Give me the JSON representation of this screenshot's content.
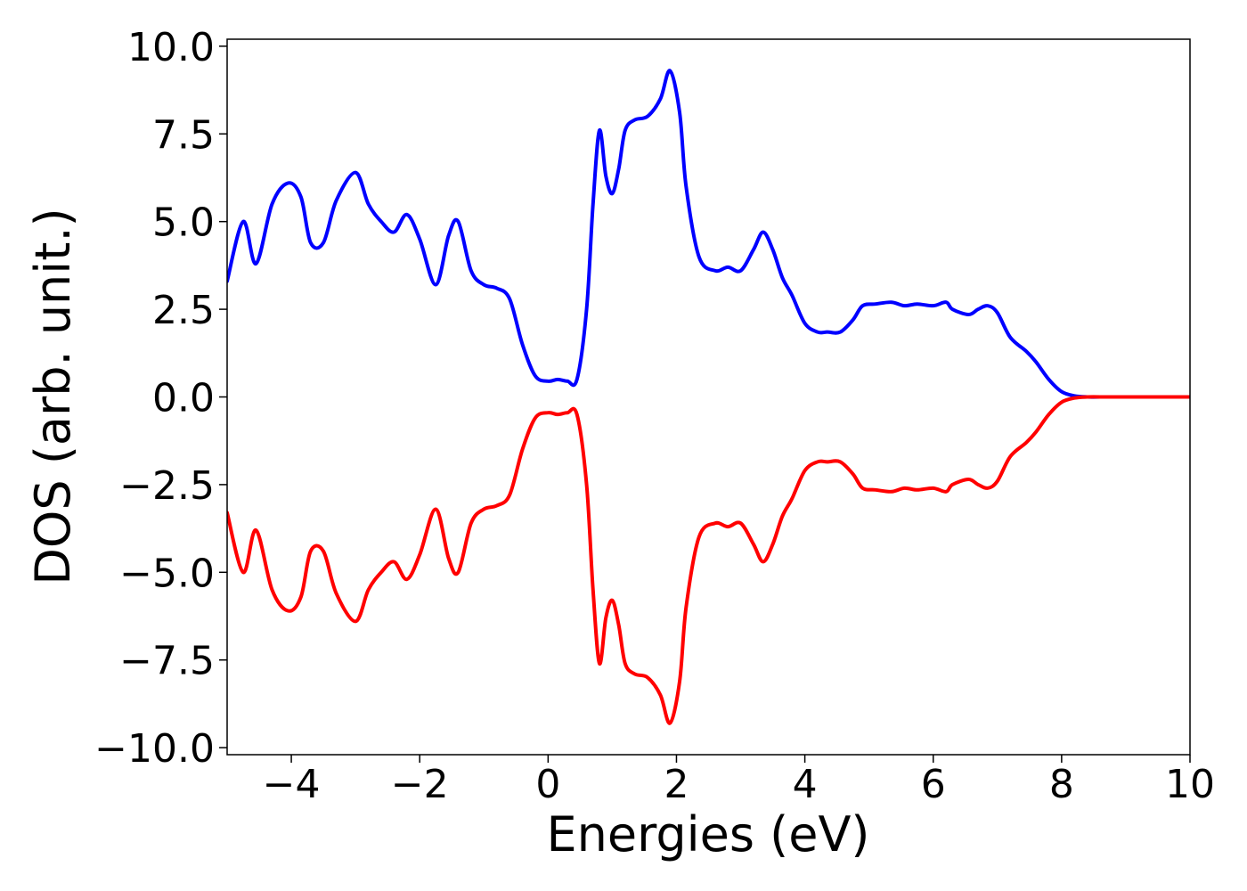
{
  "chart_data": {
    "type": "line",
    "title": "",
    "xlabel": "Energies (eV)",
    "ylabel": "DOS (arb. unit.)",
    "xlim": [
      -5,
      10
    ],
    "ylim": [
      -10.2,
      10.2
    ],
    "grid": false,
    "legend": "none",
    "x_ticks": [
      -4,
      -2,
      0,
      2,
      4,
      6,
      8,
      10
    ],
    "x_tick_labels": [
      "−4",
      "−2",
      "0",
      "2",
      "4",
      "6",
      "8",
      "10"
    ],
    "y_ticks": [
      10,
      7.5,
      5,
      2.5,
      0,
      -2.5,
      -5,
      -7.5,
      -10
    ],
    "y_tick_labels": [
      "10.0",
      "7.5",
      "5.0",
      "2.5",
      "0.0",
      "−2.5",
      "−5.0",
      "−7.5",
      "−10.0"
    ],
    "series": [
      {
        "color": "#0000ff",
        "x": [
          -5.0,
          -4.75,
          -4.55,
          -4.3,
          -4.05,
          -3.85,
          -3.7,
          -3.5,
          -3.3,
          -3.0,
          -2.8,
          -2.6,
          -2.4,
          -2.2,
          -2.0,
          -1.75,
          -1.55,
          -1.4,
          -1.2,
          -1.0,
          -0.8,
          -0.6,
          -0.4,
          -0.2,
          0.0,
          0.15,
          0.3,
          0.45,
          0.6,
          0.7,
          0.8,
          0.9,
          1.0,
          1.1,
          1.2,
          1.35,
          1.55,
          1.75,
          1.9,
          2.05,
          2.15,
          2.35,
          2.6,
          2.8,
          3.0,
          3.2,
          3.35,
          3.5,
          3.65,
          3.8,
          4.0,
          4.2,
          4.35,
          4.55,
          4.75,
          4.9,
          5.1,
          5.35,
          5.55,
          5.75,
          6.0,
          6.2,
          6.3,
          6.55,
          6.7,
          6.85,
          7.0,
          7.2,
          7.45,
          7.6,
          7.8,
          8.0,
          8.2,
          8.4,
          8.7,
          9.0,
          9.5,
          10.0
        ],
        "y": [
          3.3,
          5.0,
          3.8,
          5.5,
          6.1,
          5.7,
          4.4,
          4.4,
          5.6,
          6.4,
          5.5,
          5.0,
          4.7,
          5.2,
          4.5,
          3.2,
          4.6,
          5.0,
          3.6,
          3.2,
          3.1,
          2.8,
          1.5,
          0.6,
          0.45,
          0.5,
          0.45,
          0.5,
          2.5,
          5.5,
          7.6,
          6.3,
          5.8,
          6.5,
          7.6,
          7.9,
          8.0,
          8.5,
          9.3,
          8.1,
          6.0,
          4.0,
          3.6,
          3.7,
          3.6,
          4.2,
          4.7,
          4.2,
          3.4,
          2.9,
          2.1,
          1.85,
          1.85,
          1.85,
          2.2,
          2.6,
          2.65,
          2.7,
          2.6,
          2.65,
          2.6,
          2.7,
          2.5,
          2.35,
          2.5,
          2.6,
          2.4,
          1.7,
          1.3,
          1.0,
          0.5,
          0.15,
          0.03,
          0.0,
          0.0,
          0.0,
          0.0,
          0.0
        ]
      },
      {
        "color": "#ff0000",
        "x": [
          -5.0,
          -4.75,
          -4.55,
          -4.3,
          -4.05,
          -3.85,
          -3.7,
          -3.5,
          -3.3,
          -3.0,
          -2.8,
          -2.6,
          -2.4,
          -2.2,
          -2.0,
          -1.75,
          -1.55,
          -1.4,
          -1.2,
          -1.0,
          -0.8,
          -0.6,
          -0.4,
          -0.2,
          0.0,
          0.15,
          0.3,
          0.45,
          0.6,
          0.7,
          0.8,
          0.9,
          1.0,
          1.1,
          1.2,
          1.35,
          1.55,
          1.75,
          1.9,
          2.05,
          2.15,
          2.35,
          2.6,
          2.8,
          3.0,
          3.2,
          3.35,
          3.5,
          3.65,
          3.8,
          4.0,
          4.2,
          4.35,
          4.55,
          4.75,
          4.9,
          5.1,
          5.35,
          5.55,
          5.75,
          6.0,
          6.2,
          6.3,
          6.55,
          6.7,
          6.85,
          7.0,
          7.2,
          7.45,
          7.6,
          7.8,
          8.0,
          8.2,
          8.4,
          8.7,
          9.0,
          9.5,
          10.0
        ],
        "y": [
          -3.3,
          -5.0,
          -3.8,
          -5.5,
          -6.1,
          -5.7,
          -4.4,
          -4.4,
          -5.6,
          -6.4,
          -5.5,
          -5.0,
          -4.7,
          -5.2,
          -4.5,
          -3.2,
          -4.6,
          -5.0,
          -3.6,
          -3.2,
          -3.1,
          -2.8,
          -1.5,
          -0.6,
          -0.45,
          -0.5,
          -0.45,
          -0.5,
          -2.5,
          -5.5,
          -7.6,
          -6.3,
          -5.8,
          -6.5,
          -7.6,
          -7.9,
          -8.0,
          -8.5,
          -9.3,
          -8.1,
          -6.0,
          -4.0,
          -3.6,
          -3.7,
          -3.6,
          -4.2,
          -4.7,
          -4.2,
          -3.4,
          -2.9,
          -2.1,
          -1.85,
          -1.85,
          -1.85,
          -2.2,
          -2.6,
          -2.65,
          -2.7,
          -2.6,
          -2.65,
          -2.6,
          -2.7,
          -2.5,
          -2.35,
          -2.5,
          -2.6,
          -2.4,
          -1.7,
          -1.3,
          -1.0,
          -0.5,
          -0.15,
          -0.03,
          0.0,
          0.0,
          0.0,
          0.0,
          0.0
        ]
      }
    ]
  }
}
